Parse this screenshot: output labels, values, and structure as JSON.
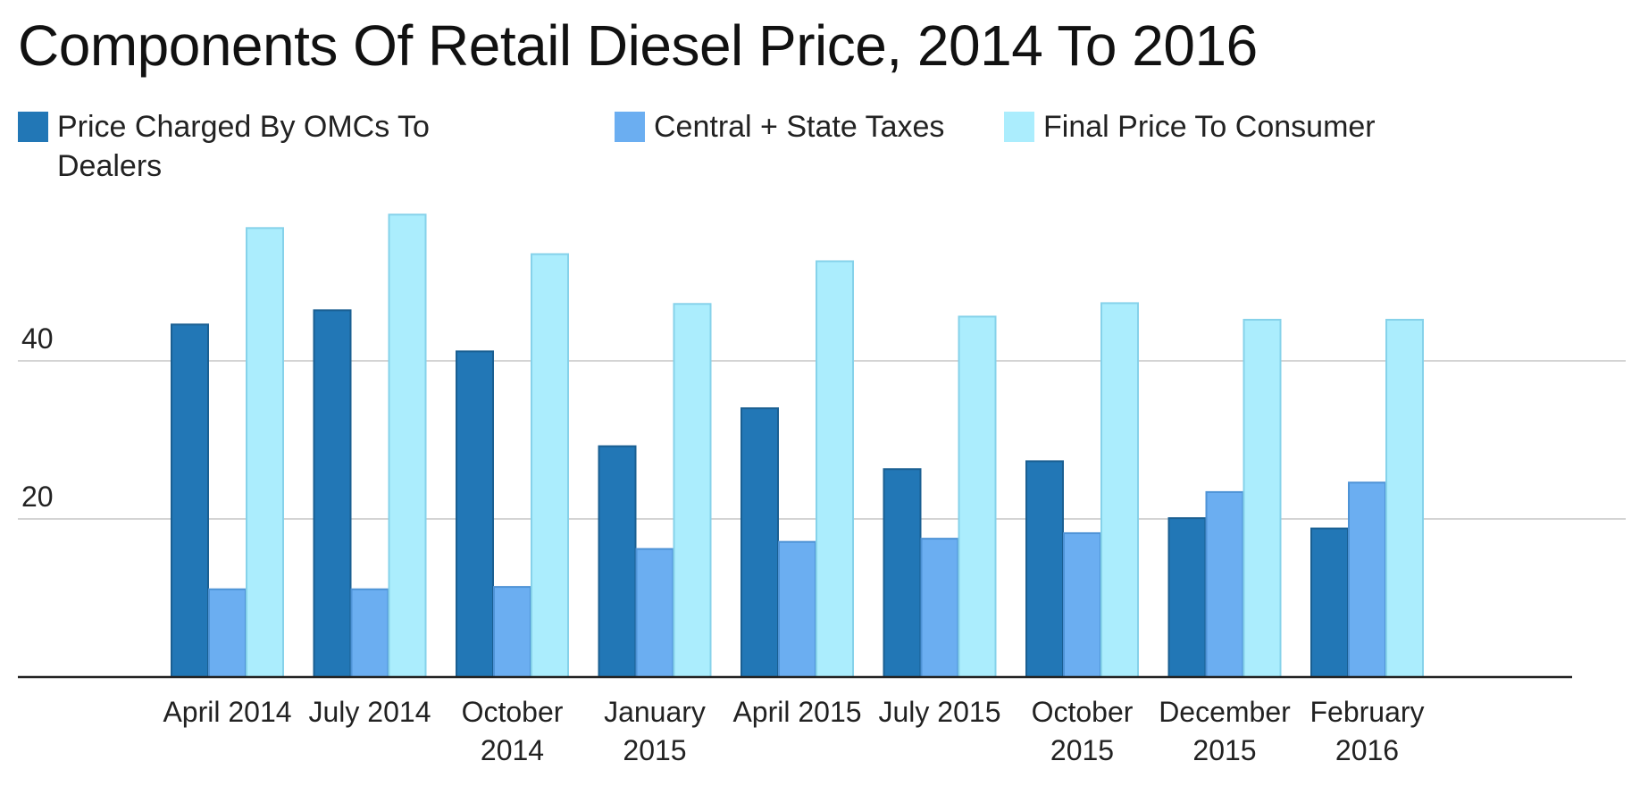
{
  "chart_data": {
    "type": "bar",
    "title": "Components Of Retail Diesel Price, 2014 To 2016",
    "categories": [
      "April 2014",
      "July 2014",
      "October 2014",
      "January 2015",
      "April 2015",
      "July 2015",
      "October 2015",
      "December 2015",
      "February 2016"
    ],
    "category_lines": [
      [
        "April 2014"
      ],
      [
        "July 2014"
      ],
      [
        "October",
        "2014"
      ],
      [
        "January",
        "2015"
      ],
      [
        "April 2015"
      ],
      [
        "July 2015"
      ],
      [
        "October",
        "2015"
      ],
      [
        "December",
        "2015"
      ],
      [
        "February",
        "2016"
      ]
    ],
    "series": [
      {
        "name": "Price Charged By OMCs To Dealers",
        "color": "#2277B6",
        "border": "#1A5F92",
        "values": [
          44.6,
          46.4,
          41.2,
          29.2,
          34.0,
          26.3,
          27.3,
          20.1,
          18.8
        ]
      },
      {
        "name": "Central + State Taxes",
        "color": "#6BAEF1",
        "border": "#4E93D6",
        "values": [
          11.1,
          11.1,
          11.4,
          16.2,
          17.1,
          17.5,
          18.2,
          23.4,
          24.6
        ]
      },
      {
        "name": "Final Price To Consumer",
        "color": "#ABEDFD",
        "border": "#86D2EA",
        "values": [
          56.8,
          58.5,
          53.5,
          47.2,
          52.6,
          45.6,
          47.3,
          45.2,
          45.2
        ]
      }
    ],
    "yticks": [
      20,
      40
    ],
    "ylim": [
      0,
      66
    ],
    "xlabel": "",
    "ylabel": "",
    "grid": true,
    "legend": "top"
  }
}
